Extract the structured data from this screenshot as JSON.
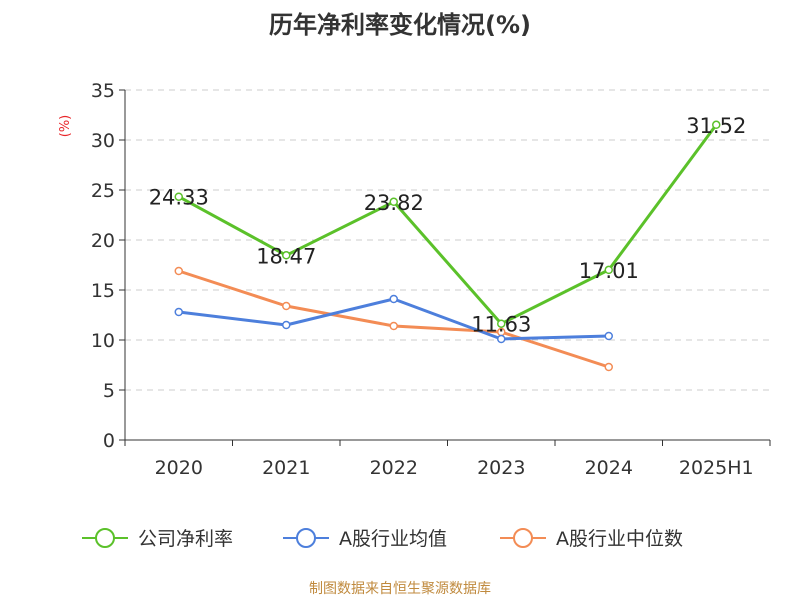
{
  "chart_data": {
    "type": "line",
    "title": "历年净利率变化情况(%)",
    "ylabel": "(%)",
    "xlabel": "",
    "categories": [
      "2020",
      "2021",
      "2022",
      "2023",
      "2024",
      "2025H1"
    ],
    "ylim": [
      0,
      35
    ],
    "yticks": [
      0,
      5,
      10,
      15,
      20,
      25,
      30,
      35
    ],
    "grid": true,
    "legend_position": "bottom",
    "series": [
      {
        "name": "公司净利率",
        "color": "#5bc12a",
        "values": [
          24.33,
          18.47,
          23.82,
          11.63,
          17.01,
          31.52
        ],
        "labels": [
          "24.33",
          "18.47",
          "23.82",
          "11.63",
          "17.01",
          "31.52"
        ]
      },
      {
        "name": "A股行业均值",
        "color": "#4d7fdc",
        "values": [
          12.8,
          11.5,
          14.1,
          10.1,
          10.4,
          null
        ]
      },
      {
        "name": "A股行业中位数",
        "color": "#f38c55",
        "values": [
          16.9,
          13.4,
          11.4,
          10.8,
          7.3,
          null
        ]
      }
    ]
  },
  "source_text": "制图数据来自恒生聚源数据库"
}
